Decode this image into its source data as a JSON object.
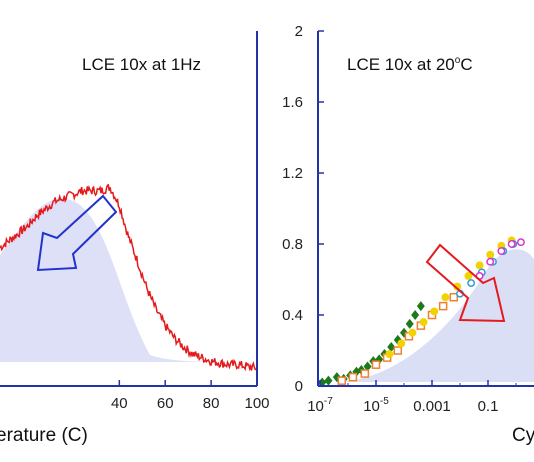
{
  "chart_data": [
    {
      "type": "line",
      "title": "LCE 10x at 1Hz",
      "xlabel": "erature (C)",
      "xlim": [
        -12,
        100
      ],
      "ylim": [
        0,
        2
      ],
      "x_ticks": [
        40,
        60,
        80,
        100
      ],
      "series": [
        {
          "color": "#e41a1c",
          "x": [
            -12,
            -8,
            -4,
            0,
            4,
            8,
            12,
            16,
            20,
            24,
            28,
            32,
            36,
            40,
            44,
            48,
            52,
            56,
            60,
            64,
            68,
            72,
            76,
            80,
            84,
            88,
            92,
            96,
            100
          ],
          "y": [
            0.78,
            0.82,
            0.86,
            0.9,
            0.96,
            1.0,
            1.04,
            1.06,
            1.08,
            1.1,
            1.1,
            1.1,
            1.12,
            1.02,
            0.84,
            0.7,
            0.55,
            0.43,
            0.34,
            0.27,
            0.22,
            0.18,
            0.16,
            0.14,
            0.13,
            0.12,
            0.12,
            0.11,
            0.1
          ]
        }
      ]
    },
    {
      "type": "scatter",
      "title": "LCE 10x at 20",
      "title_sup": "o",
      "title_suffix": "C",
      "xlabel": "Cy",
      "x_scale": "log",
      "xlim": [
        1e-07,
        10
      ],
      "ylim": [
        0,
        2
      ],
      "y_ticks": [
        0,
        0.4,
        0.8,
        1.2,
        1.6,
        2
      ],
      "y_tick_labels": [
        "0",
        "0.4",
        "0.8",
        "1.2",
        "1.6",
        "2"
      ],
      "x_ticks": [
        1e-07,
        1e-05,
        0.001,
        0.1
      ],
      "x_tick_base": [
        "10",
        "10",
        "0.001",
        "0.1"
      ],
      "x_tick_exp": [
        "-7",
        "-5",
        "",
        ""
      ],
      "series": [
        {
          "marker": "diamond",
          "color": "#1b7a1b",
          "x": [
            1.2e-07,
            2e-07,
            4e-07,
            7e-07,
            1.2e-06,
            2e-06,
            3e-06,
            5e-06,
            8e-06,
            1.3e-05,
            2e-05,
            3.5e-05,
            6e-05,
            0.0001,
            0.00016,
            0.00025,
            0.0004
          ],
          "y": [
            0.02,
            0.03,
            0.05,
            0.04,
            0.06,
            0.08,
            0.09,
            0.11,
            0.14,
            0.15,
            0.18,
            0.22,
            0.26,
            0.3,
            0.35,
            0.4,
            0.45
          ]
        },
        {
          "marker": "square",
          "color": "#f08030",
          "x": [
            6e-07,
            1.5e-06,
            4e-06,
            1e-05,
            2.5e-05,
            6e-05,
            0.00015,
            0.0004,
            0.001,
            0.0025,
            0.006
          ],
          "y": [
            0.03,
            0.05,
            0.07,
            0.12,
            0.16,
            0.2,
            0.28,
            0.34,
            0.4,
            0.45,
            0.5
          ]
        },
        {
          "marker": "circle",
          "color": "#f2d200",
          "x": [
            3e-05,
            8e-05,
            0.0002,
            0.0005,
            0.0012,
            0.003,
            0.008,
            0.02,
            0.05,
            0.12,
            0.3,
            0.7
          ],
          "y": [
            0.18,
            0.24,
            0.3,
            0.36,
            0.42,
            0.5,
            0.56,
            0.62,
            0.68,
            0.74,
            0.79,
            0.82
          ]
        },
        {
          "marker": "circle",
          "color": "#3399dd",
          "x": [
            0.01,
            0.025,
            0.06,
            0.15,
            0.35,
            0.8
          ],
          "y": [
            0.52,
            0.58,
            0.64,
            0.7,
            0.76,
            0.8
          ]
        },
        {
          "marker": "circle",
          "color": "#dd33cc",
          "x": [
            0.05,
            0.12,
            0.3,
            0.7,
            1.5
          ],
          "y": [
            0.62,
            0.7,
            0.76,
            0.8,
            0.81
          ]
        }
      ]
    }
  ]
}
